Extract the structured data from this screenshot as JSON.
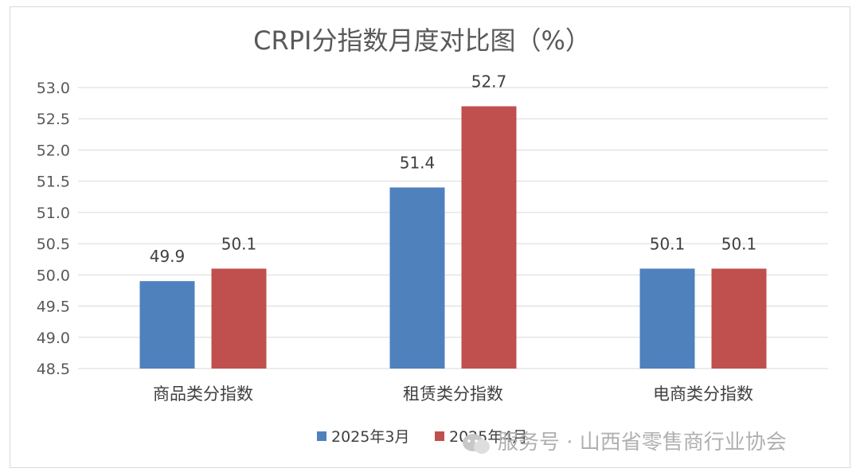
{
  "chart_data": {
    "type": "bar",
    "title": "CRPI分指数月度对比图（%）",
    "categories": [
      "商品类分指数",
      "租赁类分指数",
      "电商类分指数"
    ],
    "series": [
      {
        "name": "2025年3月",
        "color": "#4f81bd",
        "values": [
          49.9,
          51.4,
          50.1
        ]
      },
      {
        "name": "2025年4月",
        "color": "#c0504d",
        "values": [
          50.1,
          52.7,
          50.1
        ]
      }
    ],
    "yticks": [
      "53.0",
      "52.5",
      "52.0",
      "51.5",
      "51.0",
      "50.5",
      "50.0",
      "49.5",
      "49.0",
      "48.5"
    ],
    "ylim": [
      48.5,
      53.0
    ],
    "grid": true,
    "legend_position": "bottom"
  },
  "watermark": {
    "text": "服务号 · 山西省零售商行业协会",
    "icon": "chat-bubble-icon"
  }
}
